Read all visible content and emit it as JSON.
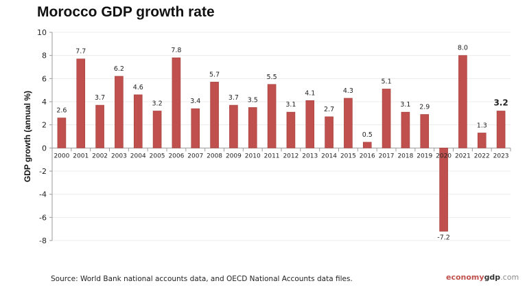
{
  "chart_data": {
    "type": "bar",
    "title": "Morocco GDP growth rate",
    "ylabel": "GDP growth (annual %)",
    "xlabel": "",
    "ylim": [
      -8,
      10
    ],
    "yticks": [
      -8,
      -6,
      -4,
      -2,
      0,
      2,
      4,
      6,
      8,
      10
    ],
    "grid": true,
    "bar_color": "#c0504d",
    "categories": [
      "2000",
      "2001",
      "2002",
      "2003",
      "2004",
      "2005",
      "2006",
      "2007",
      "2008",
      "2009",
      "2010",
      "2011",
      "2012",
      "2013",
      "2014",
      "2015",
      "2016",
      "2017",
      "2018",
      "2019",
      "2020",
      "2021",
      "2022",
      "2023"
    ],
    "values": [
      2.6,
      7.7,
      3.7,
      6.2,
      4.6,
      3.2,
      7.8,
      3.4,
      5.7,
      3.7,
      3.5,
      5.5,
      3.1,
      4.1,
      2.7,
      4.3,
      0.5,
      5.1,
      3.1,
      2.9,
      -7.2,
      8.0,
      1.3,
      3.2
    ],
    "value_labels": [
      "2.6",
      "7.7",
      "3.7",
      "6.2",
      "4.6",
      "3.2",
      "7.8",
      "3.4",
      "5.7",
      "3.7",
      "3.5",
      "5.5",
      "3.1",
      "4.1",
      "2.7",
      "4.3",
      "0.5",
      "5.1",
      "3.1",
      "2.9",
      "-7.2",
      "8.0",
      "1.3",
      "3.2"
    ]
  },
  "source": "Source: World Bank national accounts data, and OECD National Accounts data files.",
  "brand": {
    "part1": "economy",
    "part2": "gdp",
    "part3": ".com"
  }
}
